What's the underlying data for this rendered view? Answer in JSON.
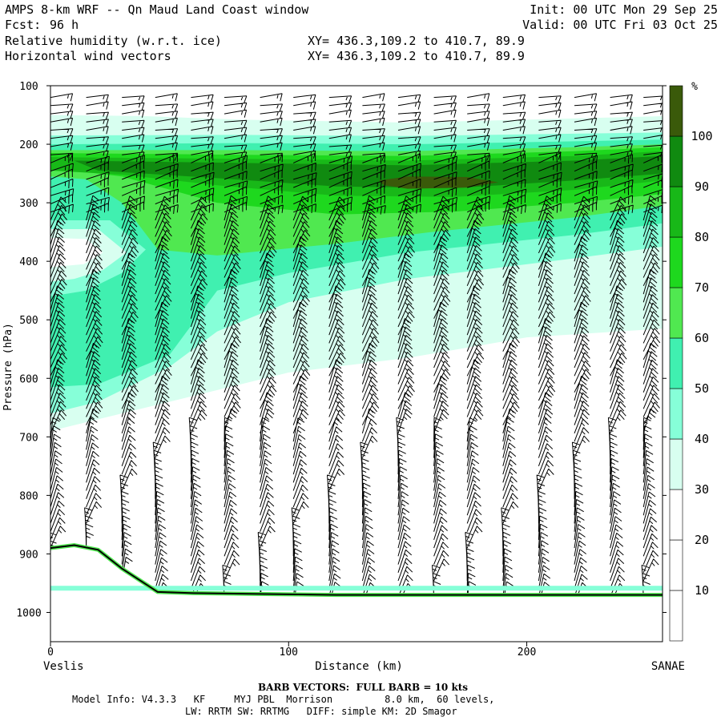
{
  "header": {
    "title": "AMPS 8-km WRF -- Qn Maud Land Coast window",
    "fcst_label": "Fcst:",
    "fcst_value": "96 h",
    "field1": "Relative humidity (w.r.t. ice)",
    "field2": "Horizontal wind vectors",
    "xy1": "XY= 436.3,109.2 to 410.7, 89.9",
    "xy2": "XY= 436.3,109.2 to 410.7, 89.9",
    "init": "Init: 00 UTC Mon 29 Sep 25",
    "valid": "Valid: 00 UTC Fri 03 Oct 25"
  },
  "footer": {
    "barb_note": "BARB VECTORS:  FULL BARB = 10 kts",
    "model_line1": "Model Info: V4.3.3   KF     MYJ PBL  Morrison         8.0 km,  60 levels,",
    "model_line2": "LW: RRTM SW: RRTMG   DIFF: simple KM: 2D Smagor"
  },
  "chart_data": {
    "type": "cross-section",
    "title": "Relative humidity (w.r.t. ice) and horizontal wind vectors",
    "xlabel": "Distance (km)",
    "ylabel": "Pressure (hPa)",
    "xlim": [
      0,
      257
    ],
    "ylim": [
      1050,
      100
    ],
    "x_ticks": [
      0,
      100,
      200
    ],
    "y_ticks": [
      100,
      200,
      300,
      400,
      500,
      600,
      700,
      800,
      900,
      1000
    ],
    "left_endpoint": "Veslis",
    "right_endpoint": "SANAE",
    "colorbar": {
      "unit": "%",
      "levels": [
        10,
        20,
        30,
        40,
        50,
        60,
        70,
        80,
        90,
        100
      ],
      "colors": [
        "#ffffff",
        "#ffffff",
        "#ffffff",
        "#d8fff0",
        "#86ffd8",
        "#40f0b0",
        "#50e850",
        "#1ed81e",
        "#18b818",
        "#108a10",
        "#3a5a0a"
      ]
    },
    "terrain_profile": {
      "x_km": [
        0,
        10,
        20,
        30,
        45,
        60,
        80,
        120,
        257
      ],
      "pressure_hpa": [
        890,
        885,
        893,
        925,
        965,
        967,
        968,
        970,
        970
      ]
    },
    "wind_barb_columns_km": [
      0,
      15,
      30,
      44,
      59,
      73,
      88,
      102,
      117,
      131,
      146,
      161,
      175,
      190,
      205,
      220,
      235,
      249
    ]
  }
}
